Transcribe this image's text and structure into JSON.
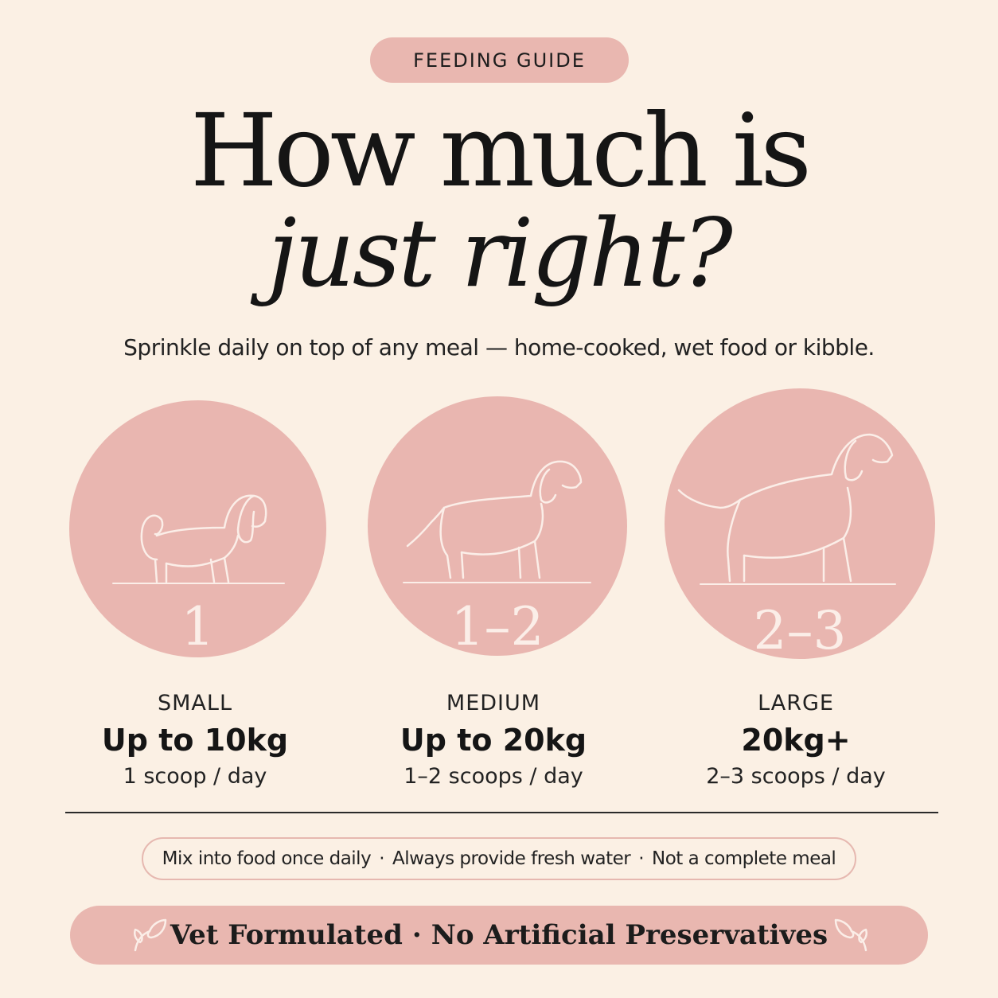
{
  "badge": "FEEDING GUIDE",
  "headline": {
    "line1": "How much is",
    "line2": "just right?"
  },
  "subtitle": "Sprinkle daily on top of any meal — home-cooked, wet food or kibble.",
  "tiers": [
    {
      "scoops": "1",
      "size": "SMALL",
      "weight": "Up to 10kg",
      "dose": "1 scoop / day",
      "icon": "small-dog-icon"
    },
    {
      "scoops": "1–2",
      "size": "MEDIUM",
      "weight": "Up to 20kg",
      "dose": "1–2 scoops / day",
      "icon": "medium-dog-icon"
    },
    {
      "scoops": "2–3",
      "size": "LARGE",
      "weight": "20kg+",
      "dose": "2–3 scoops / day",
      "icon": "large-dog-icon"
    }
  ],
  "notes": [
    "Mix into food once daily",
    "Always provide fresh water",
    "Not a complete meal"
  ],
  "notes_separator": "·",
  "footer": {
    "left": "Vet Formulated",
    "separator": "·",
    "right": "No Artificial Preservatives",
    "icon": "leaf-icon"
  },
  "colors": {
    "background": "#fbf0e4",
    "accent_pink": "#e9b7b0",
    "circle_line": "#fbeee8",
    "text": "#1c1c1c"
  }
}
